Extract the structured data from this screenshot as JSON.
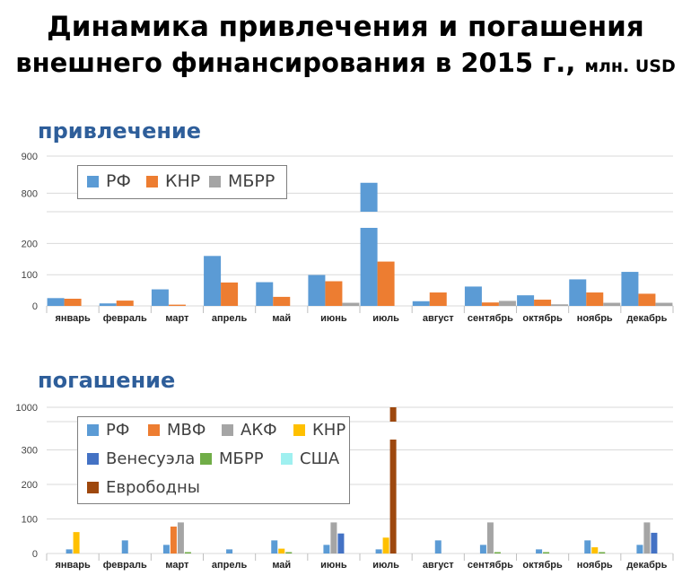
{
  "title": {
    "line1": "Динамика привлечения и погашения",
    "line2": "внешнего финансирования в 2015 г.,",
    "unit": "млн. USD"
  },
  "chart_data": [
    {
      "type": "bar",
      "title": "привлечение",
      "categories": [
        "январь",
        "февраль",
        "март",
        "апрель",
        "май",
        "июнь",
        "июль",
        "август",
        "сентябрь",
        "октябрь",
        "ноябрь",
        "декабрь"
      ],
      "series": [
        {
          "name": "РФ",
          "color": "#5b9bd5",
          "values": [
            25,
            8,
            53,
            160,
            76,
            99,
            828,
            15,
            62,
            34,
            85,
            109
          ]
        },
        {
          "name": "КНР",
          "color": "#ed7d31",
          "values": [
            23,
            17,
            4,
            75,
            29,
            79,
            142,
            43,
            11,
            20,
            43,
            39
          ]
        },
        {
          "name": "МБРР",
          "color": "#a5a5a5",
          "values": [
            0,
            0,
            0,
            0,
            0,
            10,
            0,
            0,
            16,
            5,
            10,
            10
          ]
        }
      ],
      "axis": {
        "broken": true,
        "lower_range": [
          0,
          250
        ],
        "upper_range": [
          750,
          900
        ],
        "ticks_lower": [
          0,
          100,
          200
        ],
        "ticks_upper": [
          800,
          900
        ]
      },
      "legend": "top-left",
      "grid": true
    },
    {
      "type": "bar",
      "title": "погашение",
      "categories": [
        "январь",
        "февраль",
        "март",
        "апрель",
        "май",
        "июнь",
        "июль",
        "август",
        "сентябрь",
        "октябрь",
        "ноябрь",
        "декабрь"
      ],
      "series": [
        {
          "name": "РФ",
          "color": "#5b9bd5",
          "values": [
            12,
            38,
            25,
            12,
            38,
            25,
            12,
            38,
            25,
            12,
            38,
            25
          ]
        },
        {
          "name": "МВФ",
          "color": "#ed7d31",
          "values": [
            0,
            0,
            78,
            0,
            0,
            0,
            0,
            0,
            0,
            0,
            0,
            0
          ]
        },
        {
          "name": "АКФ",
          "color": "#a5a5a5",
          "values": [
            0,
            0,
            90,
            0,
            0,
            90,
            0,
            0,
            90,
            0,
            0,
            90
          ]
        },
        {
          "name": "КНР",
          "color": "#ffc000",
          "values": [
            62,
            0,
            0,
            0,
            14,
            0,
            46,
            0,
            0,
            0,
            18,
            0
          ]
        },
        {
          "name": "Венесуэла",
          "color": "#4472c4",
          "values": [
            0,
            0,
            0,
            0,
            0,
            58,
            0,
            0,
            0,
            0,
            0,
            60
          ]
        },
        {
          "name": "МБРР",
          "color": "#70ad47",
          "values": [
            0,
            0,
            4,
            0,
            4,
            0,
            0,
            0,
            4,
            4,
            4,
            0
          ]
        },
        {
          "name": "США",
          "color": "#9ff0f0",
          "values": [
            0,
            0,
            0,
            0,
            0,
            0,
            0,
            0,
            0,
            0,
            0,
            0
          ]
        },
        {
          "name": "Еврободны",
          "color": "#9e480e",
          "values": [
            0,
            0,
            0,
            0,
            0,
            0,
            1000,
            0,
            0,
            0,
            0,
            0
          ]
        }
      ],
      "axis": {
        "broken": true,
        "lower_range": [
          0,
          330
        ],
        "upper_range": [
          970,
          1030
        ],
        "ticks_lower": [
          0,
          100,
          200,
          300
        ],
        "ticks_upper": [
          1000
        ]
      },
      "legend": "top-left",
      "grid": true
    }
  ]
}
